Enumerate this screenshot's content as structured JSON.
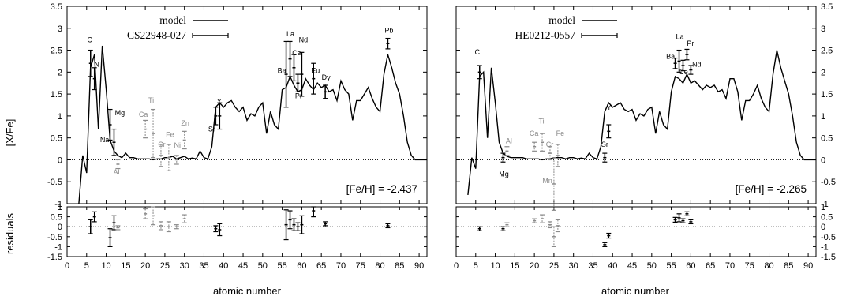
{
  "ylabel_top": "[X/Fe]",
  "ylabel_bottom": "residuals",
  "xlabel": "atomic number",
  "top_yticks": [
    "-1",
    "-0.5",
    "0",
    "0.5",
    "1",
    "1.5",
    "2",
    "2.5",
    "3",
    "3.5"
  ],
  "bottom_yticks": [
    "-1.5",
    "-1",
    "-0.5",
    "0",
    "0.5",
    "1"
  ],
  "xticks": [
    "0",
    "5",
    "10",
    "15",
    "20",
    "25",
    "30",
    "35",
    "40",
    "45",
    "50",
    "55",
    "60",
    "65",
    "70",
    "75",
    "80",
    "85",
    "90"
  ],
  "chart_data": [
    {
      "type": "line",
      "panel": "left",
      "legend": {
        "model": "model",
        "star": "CS22948-027",
        "placement": "top-left"
      },
      "metallicity_label": "[Fe/H] = -2.437",
      "xlim": [
        0,
        92
      ],
      "ylim": [
        -1,
        3.5
      ],
      "residual_ylim": [
        -1.5,
        1
      ],
      "model_line": {
        "x": [
          3,
          4,
          5,
          6,
          7,
          8,
          9,
          10,
          11,
          12,
          13,
          14,
          15,
          16,
          17,
          18,
          19,
          20,
          21,
          22,
          23,
          24,
          25,
          26,
          27,
          28,
          29,
          30,
          31,
          32,
          33,
          34,
          35,
          36,
          37,
          38,
          39,
          40,
          41,
          42,
          43,
          44,
          45,
          46,
          47,
          48,
          49,
          50,
          51,
          52,
          53,
          54,
          55,
          56,
          57,
          58,
          59,
          60,
          61,
          62,
          63,
          64,
          65,
          66,
          67,
          68,
          69,
          70,
          71,
          72,
          73,
          74,
          75,
          76,
          77,
          78,
          79,
          80,
          81,
          82,
          83,
          84,
          85,
          86,
          87,
          88,
          89,
          90,
          91,
          92
        ],
        "y": [
          -1,
          0.1,
          -0.3,
          2.1,
          2.4,
          0.7,
          2.6,
          1.6,
          0.45,
          0.2,
          0.1,
          0.05,
          0.15,
          0.05,
          0.05,
          0.02,
          0.02,
          0.02,
          0.02,
          0.0,
          0.02,
          0.02,
          0.05,
          0.05,
          0.08,
          0.02,
          0.05,
          0.08,
          0.02,
          0.04,
          0.02,
          0.2,
          0.05,
          0.02,
          0.3,
          1.2,
          1.3,
          1.2,
          1.3,
          1.35,
          1.2,
          1.1,
          1.2,
          0.9,
          1.05,
          1.0,
          1.2,
          1.3,
          0.6,
          1.1,
          0.8,
          0.7,
          1.6,
          1.65,
          1.9,
          1.7,
          1.55,
          1.6,
          1.85,
          1.7,
          1.6,
          1.75,
          1.65,
          1.7,
          1.55,
          1.6,
          1.35,
          1.8,
          1.6,
          1.5,
          0.9,
          1.35,
          1.35,
          1.5,
          1.65,
          1.4,
          1.2,
          1.1,
          1.95,
          2.4,
          2.1,
          1.75,
          1.5,
          1.0,
          0.4,
          0.1,
          0.0,
          0.0,
          0.0,
          0.0
        ]
      },
      "observed": [
        {
          "el": "C",
          "x": 6,
          "y": 2.2,
          "err": 0.3,
          "limit": false
        },
        {
          "el": "N",
          "x": 7,
          "y": 1.85,
          "err": 0.25,
          "limit": false
        },
        {
          "el": "Na",
          "x": 11,
          "y": 0.8,
          "err": 0.35,
          "limit": false
        },
        {
          "el": "Mg",
          "x": 12,
          "y": 0.4,
          "err": 0.3,
          "limit": false
        },
        {
          "el": "Al",
          "x": 13,
          "y": -0.1,
          "err": 0.1,
          "limit": true
        },
        {
          "el": "Ca",
          "x": 20,
          "y": 0.7,
          "err": 0.2,
          "limit": true
        },
        {
          "el": "Ti",
          "x": 22,
          "y": 0.6,
          "err": 0.55,
          "limit": true
        },
        {
          "el": "Cr",
          "x": 24,
          "y": 0.1,
          "err": 0.25,
          "limit": true
        },
        {
          "el": "Fe",
          "x": 26,
          "y": 0.05,
          "err": 0.3,
          "limit": true
        },
        {
          "el": "Ni",
          "x": 28,
          "y": 0.0,
          "err": 0.1,
          "limit": true
        },
        {
          "el": "Zn",
          "x": 30,
          "y": 0.45,
          "err": 0.2,
          "limit": true
        },
        {
          "el": "Sr",
          "x": 38,
          "y": 1.0,
          "err": 0.2,
          "limit": false
        },
        {
          "el": "Y",
          "x": 39,
          "y": 1.0,
          "err": 0.3,
          "limit": false
        },
        {
          "el": "Ba",
          "x": 56,
          "y": 1.95,
          "err": 0.75,
          "limit": false
        },
        {
          "el": "La",
          "x": 57,
          "y": 2.3,
          "err": 0.4,
          "limit": false
        },
        {
          "el": "Ce",
          "x": 58,
          "y": 2.1,
          "err": 0.3,
          "limit": false
        },
        {
          "el": "Pr",
          "x": 59,
          "y": 1.75,
          "err": 0.2,
          "limit": false
        },
        {
          "el": "Nd",
          "x": 60,
          "y": 1.95,
          "err": 0.5,
          "limit": false
        },
        {
          "el": "Eu",
          "x": 63,
          "y": 1.85,
          "err": 0.35,
          "limit": false
        },
        {
          "el": "Dy",
          "x": 66,
          "y": 1.55,
          "err": 0.15,
          "limit": false
        },
        {
          "el": "Pb",
          "x": 82,
          "y": 2.65,
          "err": 0.12,
          "limit": false
        }
      ],
      "element_labels": [
        {
          "el": "C",
          "x": 5.8,
          "y": 2.68,
          "gray": false
        },
        {
          "el": "N",
          "x": 7.6,
          "y": 2.12,
          "gray": false
        },
        {
          "el": "Mg",
          "x": 13.5,
          "y": 1.02,
          "gray": false
        },
        {
          "el": "Na",
          "x": 9.6,
          "y": 0.4,
          "gray": false
        },
        {
          "el": "Al",
          "x": 12.6,
          "y": -0.33,
          "gray": true
        },
        {
          "el": "Ti",
          "x": 21.5,
          "y": 1.3,
          "gray": true
        },
        {
          "el": "Ca",
          "x": 19.5,
          "y": 0.98,
          "gray": true
        },
        {
          "el": "Fe",
          "x": 26.3,
          "y": 0.52,
          "gray": true
        },
        {
          "el": "Cr",
          "x": 24.2,
          "y": 0.3,
          "gray": true
        },
        {
          "el": "Ni",
          "x": 28.2,
          "y": 0.28,
          "gray": true
        },
        {
          "el": "Zn",
          "x": 30.2,
          "y": 0.78,
          "gray": true
        },
        {
          "el": "Y",
          "x": 38.9,
          "y": 1.28,
          "gray": false
        },
        {
          "el": "Sr",
          "x": 37,
          "y": 0.65,
          "gray": false
        },
        {
          "el": "La",
          "x": 57.1,
          "y": 2.82,
          "gray": false
        },
        {
          "el": "Nd",
          "x": 60.4,
          "y": 2.68,
          "gray": false
        },
        {
          "el": "Ce",
          "x": 58.7,
          "y": 2.38,
          "gray": false
        },
        {
          "el": "Ba",
          "x": 54.9,
          "y": 1.98,
          "gray": false
        },
        {
          "el": "Eu",
          "x": 63.5,
          "y": 1.98,
          "gray": false
        },
        {
          "el": "Pr",
          "x": 59.2,
          "y": 1.4,
          "gray": false
        },
        {
          "el": "Dy",
          "x": 66.2,
          "y": 1.83,
          "gray": false
        },
        {
          "el": "Pb",
          "x": 82.3,
          "y": 2.9,
          "gray": false
        }
      ],
      "residuals": [
        {
          "x": 6,
          "y": 0.0,
          "err": 0.35,
          "gray": false
        },
        {
          "x": 7,
          "y": 0.5,
          "err": 0.25,
          "gray": false
        },
        {
          "x": 11,
          "y": -0.55,
          "err": 0.45,
          "gray": false
        },
        {
          "x": 12,
          "y": 0.2,
          "err": 0.35,
          "gray": false
        },
        {
          "x": 13,
          "y": -0.05,
          "err": 0.1,
          "gray": true
        },
        {
          "x": 20,
          "y": 0.65,
          "err": 0.25,
          "gray": true
        },
        {
          "x": 22,
          "y": 0.55,
          "err": 0.45,
          "gray": true
        },
        {
          "x": 24,
          "y": 0.05,
          "err": 0.2,
          "gray": true
        },
        {
          "x": 26,
          "y": 0.0,
          "err": 0.25,
          "gray": true
        },
        {
          "x": 28,
          "y": 0.0,
          "err": 0.1,
          "gray": true
        },
        {
          "x": 30,
          "y": 0.4,
          "err": 0.2,
          "gray": true
        },
        {
          "x": 38,
          "y": -0.1,
          "err": 0.15,
          "gray": false
        },
        {
          "x": 39,
          "y": -0.15,
          "err": 0.3,
          "gray": false
        },
        {
          "x": 56,
          "y": 0.1,
          "err": 0.75,
          "gray": false
        },
        {
          "x": 57,
          "y": 0.35,
          "err": 0.45,
          "gray": false
        },
        {
          "x": 58,
          "y": 0.1,
          "err": 0.3,
          "gray": false
        },
        {
          "x": 59,
          "y": 0.0,
          "err": 0.2,
          "gray": false
        },
        {
          "x": 60,
          "y": 0.1,
          "err": 0.45,
          "gray": false
        },
        {
          "x": 63,
          "y": 0.8,
          "err": 0.3,
          "gray": false
        },
        {
          "x": 66,
          "y": 0.15,
          "err": 0.1,
          "gray": false
        },
        {
          "x": 82,
          "y": 0.05,
          "err": 0.1,
          "gray": false
        }
      ]
    },
    {
      "type": "line",
      "panel": "right",
      "legend": {
        "model": "model",
        "star": "HE0212-0557",
        "placement": "top-left"
      },
      "metallicity_label": "[Fe/H] = -2.265",
      "xlim": [
        0,
        92
      ],
      "ylim": [
        -1,
        3.5
      ],
      "residual_ylim": [
        -1.5,
        1
      ],
      "model_line": {
        "x": [
          3,
          4,
          5,
          6,
          7,
          8,
          9,
          10,
          11,
          12,
          13,
          14,
          15,
          16,
          17,
          18,
          19,
          20,
          21,
          22,
          23,
          24,
          25,
          26,
          27,
          28,
          29,
          30,
          31,
          32,
          33,
          34,
          35,
          36,
          37,
          38,
          39,
          40,
          41,
          42,
          43,
          44,
          45,
          46,
          47,
          48,
          49,
          50,
          51,
          52,
          53,
          54,
          55,
          56,
          57,
          58,
          59,
          60,
          61,
          62,
          63,
          64,
          65,
          66,
          67,
          68,
          69,
          70,
          71,
          72,
          73,
          74,
          75,
          76,
          77,
          78,
          79,
          80,
          81,
          82,
          83,
          84,
          85,
          86,
          87,
          88,
          89,
          90,
          91,
          92
        ],
        "y": [
          -0.8,
          0.05,
          -0.2,
          1.9,
          2.0,
          0.5,
          2.1,
          1.3,
          0.4,
          0.15,
          0.08,
          0.05,
          0.05,
          0.05,
          0.05,
          0.02,
          0.02,
          0.02,
          0.02,
          0.0,
          0.02,
          0.02,
          0.05,
          0.05,
          0.05,
          0.02,
          0.05,
          0.05,
          0.02,
          0.04,
          0.02,
          0.15,
          0.05,
          0.02,
          0.3,
          1.1,
          1.3,
          1.2,
          1.25,
          1.3,
          1.15,
          1.1,
          1.15,
          0.9,
          1.05,
          1.0,
          1.15,
          1.2,
          0.6,
          1.1,
          0.8,
          0.7,
          1.55,
          1.9,
          1.85,
          1.75,
          1.95,
          1.75,
          1.8,
          1.7,
          1.6,
          1.7,
          1.65,
          1.7,
          1.55,
          1.6,
          1.4,
          1.85,
          1.85,
          1.55,
          0.9,
          1.35,
          1.35,
          1.5,
          1.7,
          1.4,
          1.2,
          1.1,
          1.95,
          2.5,
          2.1,
          1.8,
          1.5,
          1.0,
          0.4,
          0.1,
          0.0,
          0.0,
          0.0,
          0.0
        ]
      },
      "observed": [
        {
          "el": "C",
          "x": 6,
          "y": 2.0,
          "err": 0.15,
          "limit": false
        },
        {
          "el": "Mg",
          "x": 12,
          "y": 0.05,
          "err": 0.1,
          "limit": false
        },
        {
          "el": "Al",
          "x": 13,
          "y": 0.2,
          "err": 0.1,
          "limit": true
        },
        {
          "el": "Ca",
          "x": 20,
          "y": 0.3,
          "err": 0.1,
          "limit": true
        },
        {
          "el": "Ti",
          "x": 22,
          "y": 0.4,
          "err": 0.2,
          "limit": true
        },
        {
          "el": "Cr",
          "x": 24,
          "y": 0.15,
          "err": 0.15,
          "limit": true
        },
        {
          "el": "Mn",
          "x": 25,
          "y": -0.55,
          "err": 0.6,
          "limit": true
        },
        {
          "el": "Fe",
          "x": 26,
          "y": 0.1,
          "err": 0.25,
          "limit": true
        },
        {
          "el": "Sr",
          "x": 38,
          "y": 0.05,
          "err": 0.1,
          "limit": false
        },
        {
          "el": "Y",
          "x": 39,
          "y": 0.65,
          "err": 0.15,
          "limit": false
        },
        {
          "el": "Ba",
          "x": 56,
          "y": 2.2,
          "err": 0.12,
          "limit": false
        },
        {
          "el": "La",
          "x": 57,
          "y": 2.25,
          "err": 0.25,
          "limit": false
        },
        {
          "el": "Ce",
          "x": 58,
          "y": 2.15,
          "err": 0.12,
          "limit": false
        },
        {
          "el": "Pr",
          "x": 59,
          "y": 2.4,
          "err": 0.12,
          "limit": false
        },
        {
          "el": "Nd",
          "x": 60,
          "y": 2.05,
          "err": 0.1,
          "limit": false
        }
      ],
      "element_labels": [
        {
          "el": "C",
          "x": 5.4,
          "y": 2.4,
          "gray": false
        },
        {
          "el": "Al",
          "x": 13.5,
          "y": 0.38,
          "gray": true
        },
        {
          "el": "Mg",
          "x": 12.2,
          "y": -0.38,
          "gray": false
        },
        {
          "el": "Ti",
          "x": 21.8,
          "y": 0.83,
          "gray": true
        },
        {
          "el": "Ca",
          "x": 19.9,
          "y": 0.55,
          "gray": true
        },
        {
          "el": "Fe",
          "x": 26.6,
          "y": 0.55,
          "gray": true
        },
        {
          "el": "Cr",
          "x": 23.9,
          "y": 0.3,
          "gray": true
        },
        {
          "el": "Mn",
          "x": 23.3,
          "y": -0.53,
          "gray": true
        },
        {
          "el": "Y",
          "x": 39.1,
          "y": 1.14,
          "gray": false
        },
        {
          "el": "Sr",
          "x": 38,
          "y": 0.3,
          "gray": false
        },
        {
          "el": "La",
          "x": 57.2,
          "y": 2.75,
          "gray": false
        },
        {
          "el": "Pr",
          "x": 59.9,
          "y": 2.6,
          "gray": false
        },
        {
          "el": "Ba",
          "x": 54.8,
          "y": 2.3,
          "gray": false
        },
        {
          "el": "Ce",
          "x": 58.1,
          "y": 1.95,
          "gray": false
        },
        {
          "el": "Nd",
          "x": 61.5,
          "y": 2.12,
          "gray": false
        }
      ],
      "residuals": [
        {
          "x": 6,
          "y": -0.1,
          "err": 0.1,
          "gray": false
        },
        {
          "x": 12,
          "y": -0.1,
          "err": 0.1,
          "gray": false
        },
        {
          "x": 13,
          "y": 0.1,
          "err": 0.1,
          "gray": true
        },
        {
          "x": 20,
          "y": 0.3,
          "err": 0.1,
          "gray": true
        },
        {
          "x": 22,
          "y": 0.4,
          "err": 0.2,
          "gray": true
        },
        {
          "x": 24,
          "y": 0.1,
          "err": 0.15,
          "gray": true
        },
        {
          "x": 25,
          "y": -0.5,
          "err": 0.5,
          "gray": true
        },
        {
          "x": 26,
          "y": 0.05,
          "err": 0.3,
          "gray": true
        },
        {
          "x": 38,
          "y": -0.9,
          "err": 0.1,
          "gray": false
        },
        {
          "x": 39,
          "y": -0.45,
          "err": 0.12,
          "gray": false
        },
        {
          "x": 56,
          "y": 0.35,
          "err": 0.12,
          "gray": false
        },
        {
          "x": 57,
          "y": 0.45,
          "err": 0.2,
          "gray": false
        },
        {
          "x": 58,
          "y": 0.3,
          "err": 0.1,
          "gray": false
        },
        {
          "x": 59,
          "y": 0.65,
          "err": 0.1,
          "gray": false
        },
        {
          "x": 60,
          "y": 0.25,
          "err": 0.1,
          "gray": false
        }
      ]
    }
  ]
}
